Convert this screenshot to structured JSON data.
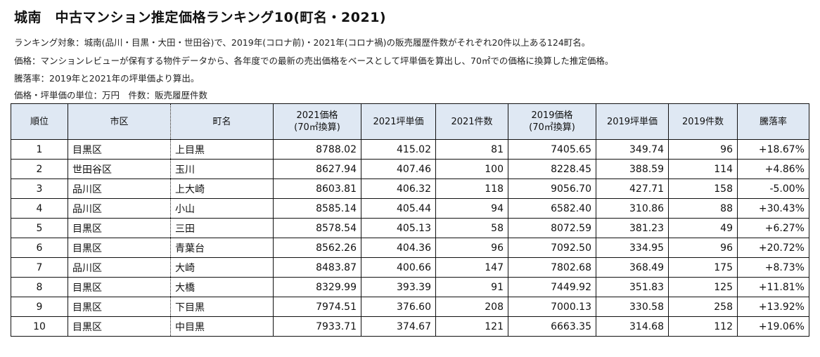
{
  "title": "城南　中古マンション推定価格ランキング10(町名・2021)",
  "notes": [
    "ランキング対象：城南(品川・目黒・大田・世田谷)で、2019年(コロナ前)・2021年(コロナ禍)の販売履歴件数がそれぞれ20件以上ある124町名。",
    "価格：マンションレビューが保有する物件データから、各年度での最新の売出価格をベースとして坪単価を算出し、70㎡での価格に換算した推定価格。",
    "騰落率：2019年と2021年の坪単価より算出。",
    "価格・坪単価の単位：万円　件数：販売履歴件数"
  ],
  "columns": [
    "順位",
    "市区",
    "町名",
    "2021価格(70㎡換算)",
    "2021坪単価",
    "2021件数",
    "2019価格(70㎡換算)",
    "2019坪単価",
    "2019件数",
    "騰落率"
  ],
  "columns_two_line": {
    "price2021": [
      "2021価格",
      "(70㎡換算)"
    ],
    "price2019": [
      "2019価格",
      "(70㎡換算)"
    ]
  },
  "rows": [
    [
      "1",
      "目黒区",
      "上目黒",
      "8788.02",
      "415.02",
      "81",
      "7405.65",
      "349.74",
      "96",
      "+18.67%"
    ],
    [
      "2",
      "世田谷区",
      "玉川",
      "8627.94",
      "407.46",
      "100",
      "8228.45",
      "388.59",
      "114",
      "+4.86%"
    ],
    [
      "3",
      "品川区",
      "上大崎",
      "8603.81",
      "406.32",
      "118",
      "9056.70",
      "427.71",
      "158",
      "-5.00%"
    ],
    [
      "4",
      "品川区",
      "小山",
      "8585.14",
      "405.44",
      "94",
      "6582.40",
      "310.86",
      "88",
      "+30.43%"
    ],
    [
      "5",
      "目黒区",
      "三田",
      "8578.54",
      "405.13",
      "58",
      "8072.59",
      "381.23",
      "49",
      "+6.27%"
    ],
    [
      "6",
      "目黒区",
      "青葉台",
      "8562.26",
      "404.36",
      "96",
      "7092.50",
      "334.95",
      "96",
      "+20.72%"
    ],
    [
      "7",
      "品川区",
      "大崎",
      "8483.87",
      "400.66",
      "147",
      "7802.68",
      "368.49",
      "175",
      "+8.73%"
    ],
    [
      "8",
      "目黒区",
      "大橋",
      "8329.99",
      "393.39",
      "91",
      "7449.92",
      "351.83",
      "125",
      "+11.81%"
    ],
    [
      "9",
      "目黒区",
      "下目黒",
      "7974.51",
      "376.60",
      "208",
      "7000.13",
      "330.58",
      "258",
      "+13.92%"
    ],
    [
      "10",
      "目黒区",
      "中目黒",
      "7933.71",
      "374.67",
      "121",
      "6663.35",
      "314.68",
      "112",
      "+19.06%"
    ]
  ]
}
